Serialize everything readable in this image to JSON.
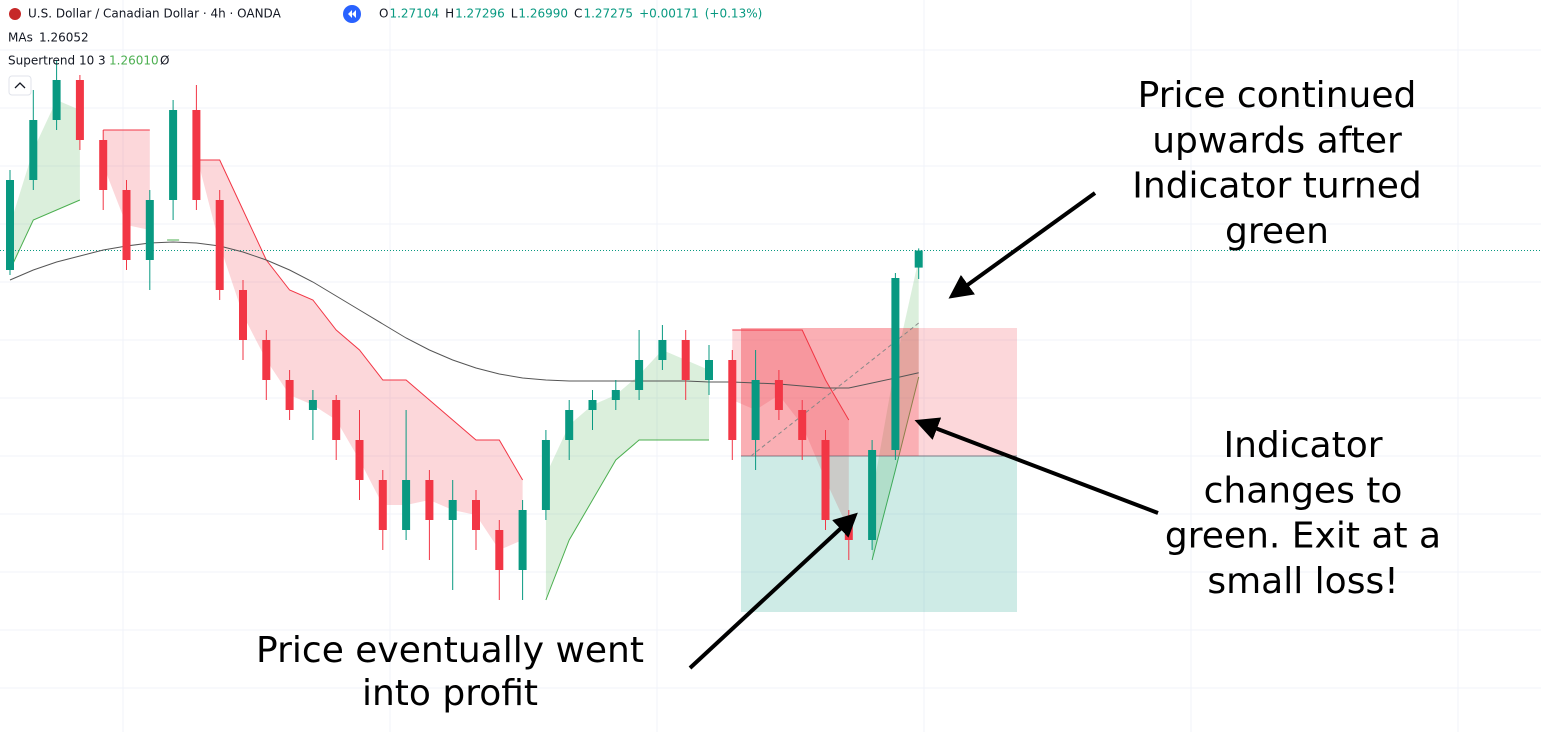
{
  "header": {
    "symbol": "U.S. Dollar / Canadian Dollar · 4h · OANDA",
    "ohlc": [
      {
        "label": "O",
        "value": "1.27104"
      },
      {
        "label": "H",
        "value": "1.27296"
      },
      {
        "label": "L",
        "value": "1.26990"
      },
      {
        "label": "C",
        "value": "1.27275"
      }
    ],
    "change": "+0.00171",
    "change_pct": "(+0.13%)",
    "indicators": [
      {
        "label": "MAs",
        "value": "1.26052"
      },
      {
        "label": "Supertrend 10 3",
        "value": "1.26010",
        "suffix": "Ø"
      }
    ]
  },
  "chart_data": {
    "type": "candlestick",
    "ylim": [
      1.2246,
      1.2978
    ],
    "colors": {
      "up": "#089981",
      "down": "#f23645"
    },
    "open": [
      1.2708,
      1.2798,
      1.2858,
      1.2898,
      1.2838,
      1.2788,
      1.2718,
      1.2778,
      1.2868,
      1.2778,
      1.2688,
      1.2638,
      1.2598,
      1.2568,
      1.2578,
      1.2538,
      1.2498,
      1.2448,
      1.2498,
      1.2458,
      1.2478,
      1.2448,
      1.2408,
      1.2468,
      1.2538,
      1.2568,
      1.2578,
      1.2588,
      1.2618,
      1.2638,
      1.2598,
      1.2618,
      1.2538,
      1.2598,
      1.2568,
      1.2538,
      1.2458,
      1.2438,
      1.2528,
      1.27104
    ],
    "high": [
      1.2808,
      1.2888,
      1.2918,
      1.2903,
      1.2848,
      1.2798,
      1.2788,
      1.2878,
      1.2893,
      1.2788,
      1.2698,
      1.2648,
      1.2608,
      1.2588,
      1.2583,
      1.2568,
      1.2508,
      1.2568,
      1.2508,
      1.2498,
      1.2488,
      1.2458,
      1.2478,
      1.2548,
      1.2578,
      1.2588,
      1.2598,
      1.2648,
      1.2653,
      1.2648,
      1.2633,
      1.2628,
      1.2628,
      1.2608,
      1.2578,
      1.2548,
      1.2468,
      1.2538,
      1.2705,
      1.27296
    ],
    "low": [
      1.2703,
      1.2788,
      1.2848,
      1.2828,
      1.2768,
      1.2708,
      1.2688,
      1.2758,
      1.2768,
      1.2678,
      1.2618,
      1.2578,
      1.2558,
      1.2538,
      1.2518,
      1.2478,
      1.2428,
      1.2438,
      1.2418,
      1.2388,
      1.2428,
      1.2378,
      1.2378,
      1.2458,
      1.2518,
      1.2548,
      1.2568,
      1.2578,
      1.2608,
      1.2578,
      1.2583,
      1.2518,
      1.2508,
      1.2558,
      1.2518,
      1.2448,
      1.2418,
      1.2428,
      1.2518,
      1.2699
    ],
    "close": [
      1.2798,
      1.2858,
      1.2898,
      1.2838,
      1.2788,
      1.2718,
      1.2778,
      1.2868,
      1.2778,
      1.2688,
      1.2638,
      1.2598,
      1.2568,
      1.2578,
      1.2538,
      1.2498,
      1.2448,
      1.2498,
      1.2458,
      1.2478,
      1.2448,
      1.2408,
      1.2468,
      1.2538,
      1.2568,
      1.2578,
      1.2588,
      1.2618,
      1.2638,
      1.2598,
      1.2618,
      1.2538,
      1.2598,
      1.2568,
      1.2538,
      1.2458,
      1.2438,
      1.2528,
      1.27,
      1.27275
    ],
    "ma": {
      "color": "#555555",
      "values": [
        1.2698,
        1.2708,
        1.2716,
        1.2722,
        1.2728,
        1.2732,
        1.2735,
        1.2736,
        1.2735,
        1.2732,
        1.2726,
        1.2718,
        1.2708,
        1.2696,
        1.2682,
        1.2668,
        1.2654,
        1.264,
        1.2628,
        1.2618,
        1.261,
        1.2604,
        1.26,
        1.2598,
        1.2597,
        1.2597,
        1.2597,
        1.2597,
        1.2597,
        1.2597,
        1.2596,
        1.2596,
        1.2595,
        1.2594,
        1.2592,
        1.259,
        1.259,
        1.2595,
        1.26,
        1.26052
      ]
    },
    "supertrend": {
      "up": {
        "color": "#4caf50",
        "values": [
          1.2708,
          1.2758,
          1.2768,
          1.2778,
          null,
          null,
          null,
          1.2738,
          null,
          null,
          null,
          null,
          null,
          null,
          null,
          null,
          null,
          null,
          null,
          null,
          null,
          null,
          null,
          1.2378,
          1.2438,
          1.2478,
          1.2518,
          1.2538,
          1.2538,
          1.2538,
          1.2538,
          null,
          null,
          null,
          null,
          null,
          null,
          1.2418,
          1.2508,
          1.2601
        ]
      },
      "down": {
        "color": "#f23645",
        "values": [
          null,
          null,
          null,
          null,
          1.2848,
          1.2848,
          1.2848,
          null,
          1.2818,
          1.2818,
          1.2768,
          1.2718,
          1.2688,
          1.2678,
          1.2648,
          1.2628,
          1.2598,
          1.2598,
          1.2578,
          1.2558,
          1.2538,
          1.2538,
          1.2498,
          null,
          null,
          null,
          null,
          null,
          null,
          null,
          null,
          1.2648,
          1.2648,
          1.2648,
          1.2648,
          1.2598,
          1.2558,
          null,
          null,
          null
        ]
      }
    },
    "position": {
      "entry": 1.2522,
      "stop": 1.265,
      "target": 1.2366
    },
    "annotations": [
      {
        "lines": [
          "Price continued",
          "upwards after",
          "Indicator turned",
          "green"
        ]
      },
      {
        "lines": [
          "Indicator",
          "changes to",
          "green. Exit at a",
          "small loss!"
        ]
      },
      {
        "lines": [
          "Price eventually went",
          "into profit"
        ]
      }
    ]
  }
}
